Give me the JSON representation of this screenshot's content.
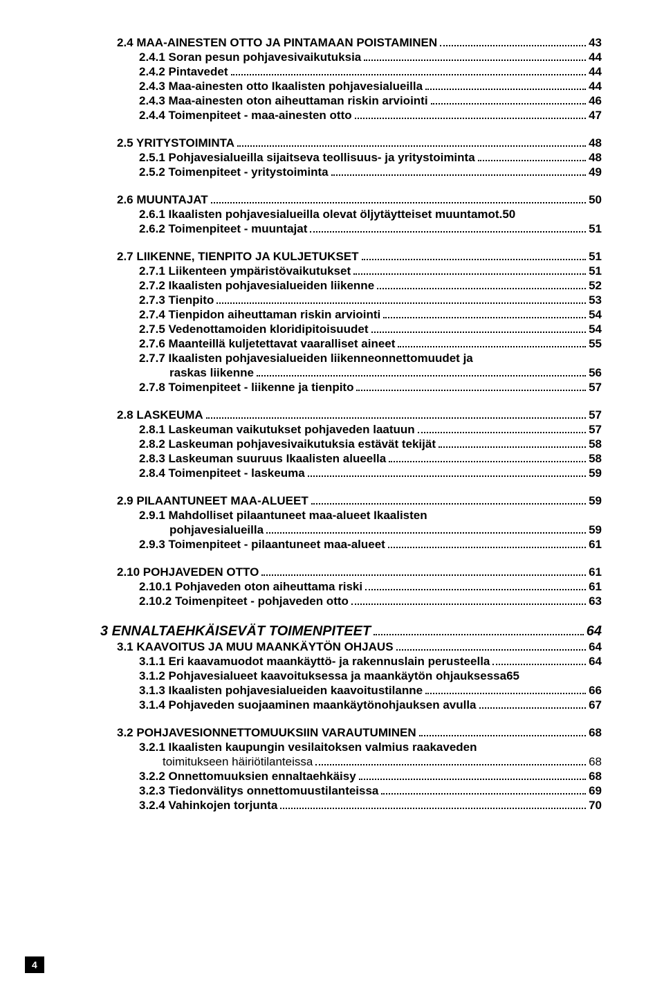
{
  "page_number": "4",
  "toc": [
    {
      "level": 2,
      "label": "2.4 MAA-AINESTEN OTTO JA PINTAMAAN POISTAMINEN",
      "page": "43"
    },
    {
      "level": 3,
      "label": "2.4.1 Soran pesun pohjavesivaikutuksia",
      "page": "44"
    },
    {
      "level": 3,
      "label": "2.4.2 Pintavedet",
      "page": "44"
    },
    {
      "level": 3,
      "label": "2.4.3 Maa-ainesten otto Ikaalisten pohjavesialueilla",
      "page": "44"
    },
    {
      "level": 3,
      "label": "2.4.3 Maa-ainesten oton aiheuttaman riskin arviointi",
      "page": "46"
    },
    {
      "level": 3,
      "label": "2.4.4 Toimenpiteet - maa-ainesten otto",
      "page": "47"
    },
    {
      "level": 2,
      "label": "2.5 YRITYSTOIMINTA",
      "page": "48"
    },
    {
      "level": 3,
      "label": "2.5.1 Pohjavesialueilla sijaitseva teollisuus- ja yritystoiminta",
      "page": "48"
    },
    {
      "level": 3,
      "label": "2.5.2 Toimenpiteet - yritystoiminta",
      "page": "49"
    },
    {
      "level": 2,
      "label": "2.6 MUUNTAJAT",
      "page": "50"
    },
    {
      "level": 3,
      "label": "2.6.1 Ikaalisten pohjavesialueilla olevat öljytäytteiset muuntamot.",
      "page": "50",
      "nodots": true
    },
    {
      "level": 3,
      "label": "2.6.2 Toimenpiteet - muuntajat",
      "page": "51"
    },
    {
      "level": 2,
      "label": "2.7 LIIKENNE, TIENPITO JA KULJETUKSET",
      "page": "51"
    },
    {
      "level": 3,
      "label": "2.7.1 Liikenteen ympäristövaikutukset",
      "page": "51"
    },
    {
      "level": 3,
      "label": "2.7.2 Ikaalisten pohjavesialueiden liikenne",
      "page": "52"
    },
    {
      "level": 3,
      "label": "2.7.3 Tienpito",
      "page": "53"
    },
    {
      "level": 3,
      "label": "2.7.4 Tienpidon aiheuttaman riskin arviointi",
      "page": "54"
    },
    {
      "level": 3,
      "label": "2.7.5 Vedenottamoiden kloridipitoisuudet",
      "page": "54"
    },
    {
      "level": 3,
      "label": "2.7.6 Maanteillä kuljetettavat vaaralliset aineet",
      "page": "55"
    },
    {
      "level": 3,
      "label": "2.7.7 Ikaalisten pohjavesialueiden liikenneonnettomuudet ja",
      "wrap_next": "raskas liikenne",
      "page": "56"
    },
    {
      "level": 3,
      "label": "2.7.8 Toimenpiteet - liikenne ja tienpito",
      "page": "57"
    },
    {
      "level": 2,
      "label": "2.8 LASKEUMA",
      "page": "57"
    },
    {
      "level": 3,
      "label": "2.8.1 Laskeuman vaikutukset pohjaveden laatuun",
      "page": "57"
    },
    {
      "level": 3,
      "label": "2.8.2 Laskeuman pohjavesivaikutuksia estävät tekijät",
      "page": "58"
    },
    {
      "level": 3,
      "label": "2.8.3 Laskeuman suuruus Ikaalisten alueella",
      "page": "58"
    },
    {
      "level": 3,
      "label": "2.8.4 Toimenpiteet - laskeuma",
      "page": "59"
    },
    {
      "level": 2,
      "label": "2.9 PILAANTUNEET MAA-ALUEET",
      "page": "59"
    },
    {
      "level": 3,
      "label": "2.9.1 Mahdolliset pilaantuneet maa-alueet Ikaalisten",
      "wrap_next": "pohjavesialueilla",
      "page": "59"
    },
    {
      "level": 3,
      "label": "2.9.3 Toimenpiteet - pilaantuneet maa-alueet",
      "page": "61"
    },
    {
      "level": 2,
      "label": "2.10 POHJAVEDEN OTTO",
      "page": "61"
    },
    {
      "level": 3,
      "label": "2.10.1 Pohjaveden oton aiheuttama riski",
      "page": "61"
    },
    {
      "level": 3,
      "label": "2.10.2 Toimenpiteet - pohjaveden otto",
      "page": "63"
    },
    {
      "level": 1,
      "label": "3 ENNALTAEHKÄISEVÄT TOIMENPITEET",
      "page": "64"
    },
    {
      "level": 2,
      "label": "3.1 KAAVOITUS JA MUU MAANKÄYTÖN OHJAUS",
      "page": "64",
      "tight": true
    },
    {
      "level": 3,
      "label": "3.1.1 Eri kaavamuodot maankäyttö- ja rakennuslain perusteella",
      "page": "64"
    },
    {
      "level": 3,
      "label": "3.1.2 Pohjavesialueet kaavoituksessa ja maankäytön ohjauksessa",
      "page": "65",
      "nodots": true
    },
    {
      "level": 3,
      "label": "3.1.3 Ikaalisten pohjavesialueiden kaavoitustilanne",
      "page": "66"
    },
    {
      "level": 3,
      "label": "3.1.4 Pohjaveden suojaaminen maankäytönohjauksen avulla",
      "page": "67"
    },
    {
      "level": 2,
      "label": "3.2 POHJAVESIONNETTOMUUKSIIN VARAUTUMINEN",
      "page": "68"
    },
    {
      "level": 3,
      "label": "3.2.1 Ikaalisten kaupungin vesilaitoksen valmius raakaveden",
      "wrap_next_sub": "toimitukseen häiriötilanteissa",
      "page": "68"
    },
    {
      "level": 3,
      "label": "3.2.2 Onnettomuuksien ennaltaehkäisy",
      "page": "68"
    },
    {
      "level": 3,
      "label": "3.2.3 Tiedonvälitys onnettomuustilanteissa",
      "page": "69"
    },
    {
      "level": 3,
      "label": "3.2.4 Vahinkojen torjunta",
      "page": "70"
    }
  ]
}
